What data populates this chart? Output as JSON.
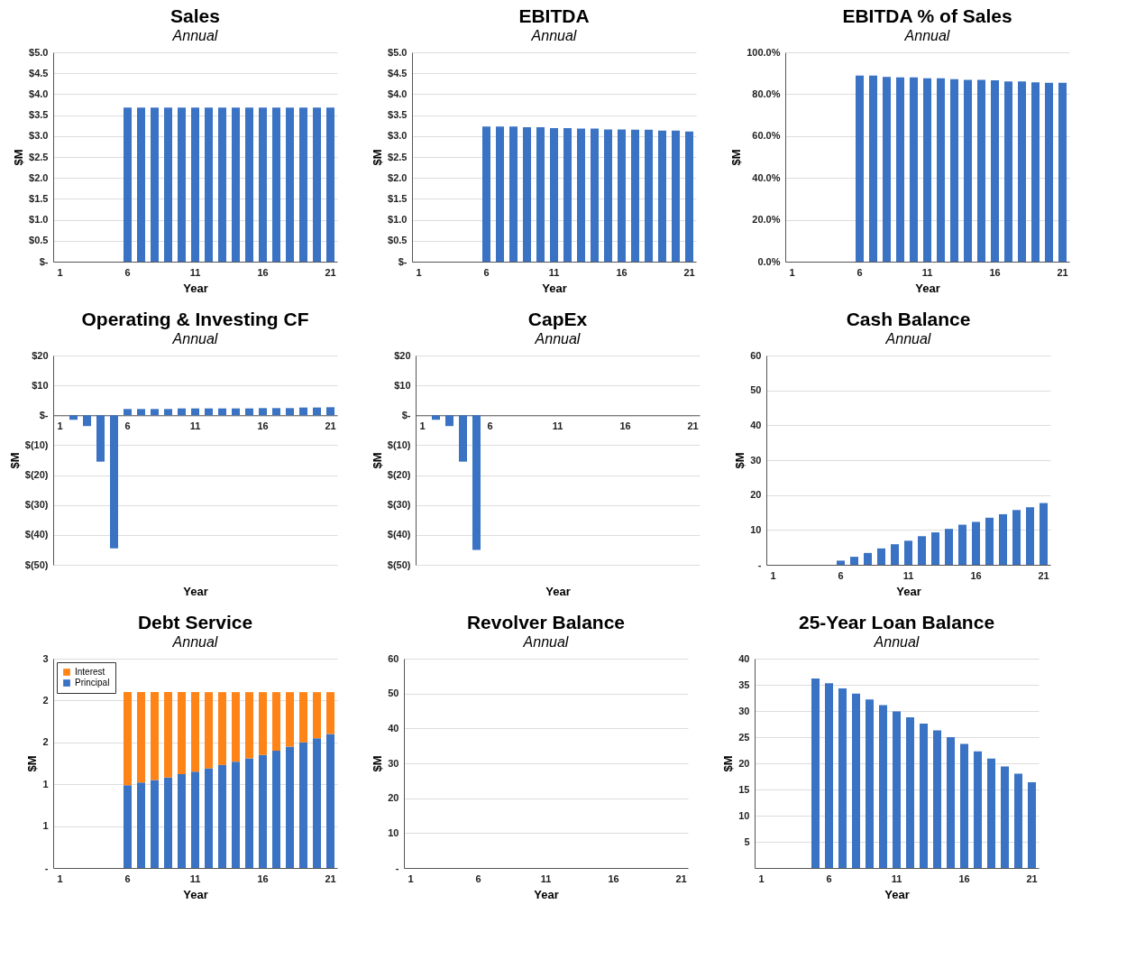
{
  "chart_data": [
    {
      "type": "bar",
      "title": "Sales",
      "subtitle": "Annual",
      "xlabel": "Year",
      "ylabel": "$M",
      "categories": [
        "1",
        null,
        null,
        null,
        null,
        "6",
        null,
        null,
        null,
        null,
        "11",
        null,
        null,
        null,
        null,
        "16",
        null,
        null,
        null,
        null,
        "21"
      ],
      "color": "#3a72c4",
      "values": [
        null,
        null,
        null,
        null,
        null,
        3.68,
        3.68,
        3.68,
        3.68,
        3.68,
        3.68,
        3.68,
        3.68,
        3.68,
        3.68,
        3.68,
        3.68,
        3.68,
        3.68,
        3.68,
        3.68
      ],
      "ylim": [
        0,
        5
      ],
      "yticks": [
        {
          "value": 0,
          "label": "$-"
        },
        {
          "value": 0.5,
          "label": "$0.5"
        },
        {
          "value": 1,
          "label": "$1.0"
        },
        {
          "value": 1.5,
          "label": "$1.5"
        },
        {
          "value": 2,
          "label": "$2.0"
        },
        {
          "value": 2.5,
          "label": "$2.5"
        },
        {
          "value": 3,
          "label": "$3.0"
        },
        {
          "value": 3.5,
          "label": "$3.5"
        },
        {
          "value": 4,
          "label": "$4.0"
        },
        {
          "value": 4.5,
          "label": "$4.5"
        },
        {
          "value": 5,
          "label": "$5.0"
        }
      ],
      "grid": "y"
    },
    {
      "type": "bar",
      "title": "EBITDA",
      "subtitle": "Annual",
      "xlabel": "Year",
      "ylabel": "$M",
      "categories": [
        "1",
        null,
        null,
        null,
        null,
        "6",
        null,
        null,
        null,
        null,
        "11",
        null,
        null,
        null,
        null,
        "16",
        null,
        null,
        null,
        null,
        "21"
      ],
      "color": "#3a72c4",
      "values": [
        null,
        null,
        null,
        null,
        null,
        3.23,
        3.23,
        3.23,
        3.21,
        3.21,
        3.19,
        3.19,
        3.18,
        3.18,
        3.16,
        3.16,
        3.15,
        3.15,
        3.13,
        3.13,
        3.11
      ],
      "ylim": [
        0,
        5
      ],
      "yticks": [
        {
          "value": 0,
          "label": "$-"
        },
        {
          "value": 0.5,
          "label": "$0.5"
        },
        {
          "value": 1,
          "label": "$1.0"
        },
        {
          "value": 1.5,
          "label": "$1.5"
        },
        {
          "value": 2,
          "label": "$2.0"
        },
        {
          "value": 2.5,
          "label": "$2.5"
        },
        {
          "value": 3,
          "label": "$3.0"
        },
        {
          "value": 3.5,
          "label": "$3.5"
        },
        {
          "value": 4,
          "label": "$4.0"
        },
        {
          "value": 4.5,
          "label": "$4.5"
        },
        {
          "value": 5,
          "label": "$5.0"
        }
      ],
      "grid": "y"
    },
    {
      "type": "bar",
      "title": "EBITDA % of Sales",
      "subtitle": "Annual",
      "xlabel": "Year",
      "ylabel": "$M",
      "categories": [
        "1",
        null,
        null,
        null,
        null,
        "6",
        null,
        null,
        null,
        null,
        "11",
        null,
        null,
        null,
        null,
        "16",
        null,
        null,
        null,
        null,
        "21"
      ],
      "color": "#3a72c4",
      "values": [
        null,
        null,
        null,
        null,
        null,
        88.9,
        88.9,
        88.3,
        88.0,
        88.0,
        87.6,
        87.6,
        87.2,
        86.9,
        86.9,
        86.6,
        86.1,
        86.1,
        85.7,
        85.4,
        85.4
      ],
      "ylim": [
        0,
        100
      ],
      "yticks": [
        {
          "value": 0,
          "label": "0.0%"
        },
        {
          "value": 20,
          "label": "20.0%"
        },
        {
          "value": 40,
          "label": "40.0%"
        },
        {
          "value": 60,
          "label": "60.0%"
        },
        {
          "value": 80,
          "label": "80.0%"
        },
        {
          "value": 100,
          "label": "100.0%"
        }
      ],
      "grid": "y"
    },
    {
      "type": "bar",
      "title": "Operating & Investing CF",
      "subtitle": "Annual",
      "xlabel": "Year",
      "ylabel": "$M",
      "categories": [
        "1",
        null,
        null,
        null,
        null,
        "6",
        null,
        null,
        null,
        null,
        "11",
        null,
        null,
        null,
        null,
        "16",
        null,
        null,
        null,
        null,
        "21"
      ],
      "color": "#3a72c4",
      "values": [
        null,
        -1.5,
        -3.6,
        -15.5,
        -44.5,
        2.1,
        2.1,
        2.1,
        2.1,
        2.3,
        2.3,
        2.3,
        2.3,
        2.3,
        2.3,
        2.4,
        2.4,
        2.4,
        2.6,
        2.6,
        2.7
      ],
      "ylim": [
        -50,
        20
      ],
      "yticks": [
        {
          "value": -50,
          "label": "$(50)"
        },
        {
          "value": -40,
          "label": "$(40)"
        },
        {
          "value": -30,
          "label": "$(30)"
        },
        {
          "value": -20,
          "label": "$(20)"
        },
        {
          "value": -10,
          "label": "$(10)"
        },
        {
          "value": 0,
          "label": "$-"
        },
        {
          "value": 10,
          "label": "$10"
        },
        {
          "value": 20,
          "label": "$20"
        }
      ],
      "grid": "y"
    },
    {
      "type": "bar",
      "title": "CapEx",
      "subtitle": "Annual",
      "xlabel": "Year",
      "ylabel": "$M",
      "categories": [
        "1",
        null,
        null,
        null,
        null,
        "6",
        null,
        null,
        null,
        null,
        "11",
        null,
        null,
        null,
        null,
        "16",
        null,
        null,
        null,
        null,
        "21"
      ],
      "color": "#3a72c4",
      "values": [
        null,
        -1.5,
        -3.6,
        -15.5,
        -45,
        null,
        null,
        null,
        null,
        null,
        null,
        null,
        null,
        null,
        null,
        null,
        null,
        null,
        null,
        null,
        null
      ],
      "ylim": [
        -50,
        20
      ],
      "yticks": [
        {
          "value": -50,
          "label": "$(50)"
        },
        {
          "value": -40,
          "label": "$(40)"
        },
        {
          "value": -30,
          "label": "$(30)"
        },
        {
          "value": -20,
          "label": "$(20)"
        },
        {
          "value": -10,
          "label": "$(10)"
        },
        {
          "value": 0,
          "label": "$-"
        },
        {
          "value": 10,
          "label": "$10"
        },
        {
          "value": 20,
          "label": "$20"
        }
      ],
      "grid": "y"
    },
    {
      "type": "bar",
      "title": "Cash Balance",
      "subtitle": "Annual",
      "xlabel": "Year",
      "ylabel": "$M",
      "categories": [
        "1",
        null,
        null,
        null,
        null,
        "6",
        null,
        null,
        null,
        null,
        "11",
        null,
        null,
        null,
        null,
        "16",
        null,
        null,
        null,
        null,
        "21"
      ],
      "color": "#3a72c4",
      "values": [
        null,
        null,
        null,
        null,
        null,
        1.2,
        2.3,
        3.4,
        4.7,
        5.9,
        6.9,
        8.2,
        9.3,
        10.3,
        11.5,
        12.3,
        13.5,
        14.5,
        15.7,
        16.5,
        17.7
      ],
      "ylim": [
        0,
        60
      ],
      "yticks": [
        {
          "value": 0,
          "label": "-"
        },
        10,
        20,
        30,
        40,
        50,
        60
      ],
      "grid": "y"
    },
    {
      "type": "bar",
      "title": "Debt Service",
      "subtitle": "Annual",
      "xlabel": "Year",
      "ylabel": "$M",
      "categories": [
        "1",
        null,
        null,
        null,
        null,
        "6",
        null,
        null,
        null,
        null,
        "11",
        null,
        null,
        null,
        null,
        "16",
        null,
        null,
        null,
        null,
        "21"
      ],
      "stacked": true,
      "legend": "top left",
      "series": [
        {
          "name": "Principal",
          "color": "#3a72c4",
          "values": [
            null,
            null,
            null,
            null,
            null,
            0.99,
            1.02,
            1.05,
            1.08,
            1.12,
            1.15,
            1.19,
            1.23,
            1.27,
            1.31,
            1.35,
            1.4,
            1.45,
            1.5,
            1.55,
            1.6
          ]
        },
        {
          "name": "Interest",
          "color": "#ff8418",
          "values": [
            null,
            null,
            null,
            null,
            null,
            1.11,
            1.08,
            1.05,
            1.02,
            0.98,
            0.95,
            0.91,
            0.87,
            0.83,
            0.79,
            0.75,
            0.7,
            0.65,
            0.6,
            0.55,
            0.5
          ]
        }
      ],
      "ylim": [
        0,
        2.5
      ],
      "yticks": [
        {
          "value": 0,
          "label": "-"
        },
        {
          "value": 0.5,
          "label": "1"
        },
        1,
        {
          "value": 1.5,
          "label": "2"
        },
        2,
        {
          "value": 2.5,
          "label": "3"
        }
      ],
      "grid": "y"
    },
    {
      "type": "bar",
      "title": "Revolver Balance",
      "subtitle": "Annual",
      "xlabel": "Year",
      "ylabel": "$M",
      "categories": [
        "1",
        null,
        null,
        null,
        null,
        "6",
        null,
        null,
        null,
        null,
        "11",
        null,
        null,
        null,
        null,
        "16",
        null,
        null,
        null,
        null,
        "21"
      ],
      "color": "#3a72c4",
      "values": [
        null,
        null,
        null,
        null,
        null,
        null,
        null,
        null,
        null,
        null,
        null,
        null,
        null,
        null,
        null,
        null,
        null,
        null,
        null,
        null,
        null
      ],
      "ylim": [
        0,
        60
      ],
      "yticks": [
        {
          "value": 0,
          "label": "-"
        },
        10,
        20,
        30,
        40,
        50,
        60
      ],
      "grid": "y"
    },
    {
      "type": "bar",
      "title": "25-Year Loan Balance",
      "subtitle": "Annual",
      "xlabel": "Year",
      "ylabel": "$M",
      "categories": [
        "1",
        null,
        null,
        null,
        null,
        "6",
        null,
        null,
        null,
        null,
        "11",
        null,
        null,
        null,
        null,
        "16",
        null,
        null,
        null,
        null,
        "21"
      ],
      "color": "#3a72c4",
      "values": [
        null,
        null,
        null,
        null,
        36.2,
        35.3,
        34.3,
        33.3,
        32.2,
        31.1,
        29.9,
        28.8,
        27.6,
        26.3,
        25.0,
        23.7,
        22.3,
        20.9,
        19.4,
        18.0,
        16.4
      ],
      "ylim": [
        0,
        40
      ],
      "yticks": [
        {
          "value": 0,
          "label": null
        },
        5,
        10,
        15,
        20,
        25,
        30,
        35,
        40
      ],
      "grid": "y"
    }
  ]
}
